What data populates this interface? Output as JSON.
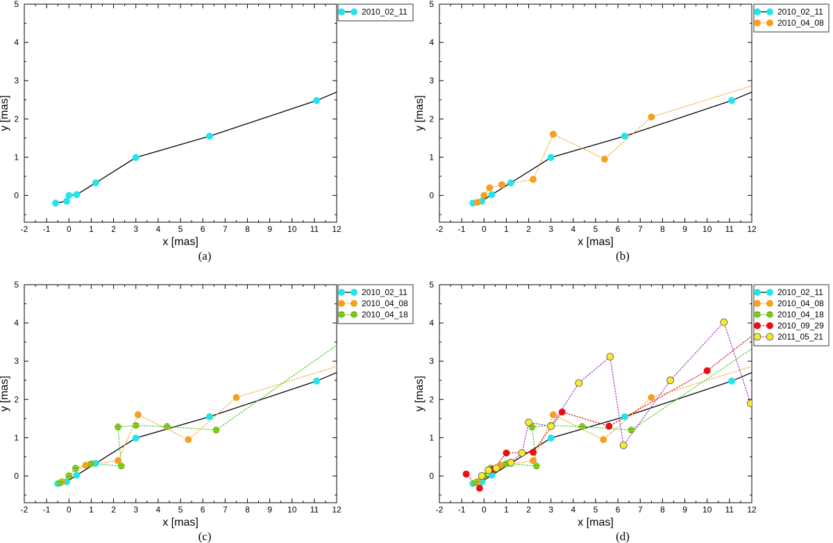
{
  "figure": {
    "caption_labels": [
      "(a)",
      "(b)",
      "(c)",
      "(d)"
    ]
  },
  "series_styles": {
    "2010_02_11": {
      "color": "#1fe6ec",
      "line": "#000000",
      "dash": "solid",
      "stripes": false,
      "marker_edge": ""
    },
    "2010_04_08": {
      "color": "#f5a01e",
      "line": "#f5a01e",
      "dash": "dotted",
      "stripes": false,
      "marker_edge": ""
    },
    "2010_04_18": {
      "color": "#7be01c",
      "line": "#3fcc1c",
      "dash": "dotted",
      "stripes": true,
      "marker_edge": ""
    },
    "2010_09_29": {
      "color": "#e81010",
      "line": "#d01010",
      "dash": "dotted",
      "stripes": false,
      "marker_edge": ""
    },
    "2011_05_21": {
      "color": "#f6ea2c",
      "line": "#9a2fc6",
      "dash": "dotted",
      "stripes": false,
      "marker_edge": "#555555"
    }
  },
  "chart_data": [
    {
      "type": "line",
      "panel": "(a)",
      "xlabel": "x [mas]",
      "ylabel": "y [mas]",
      "xlim": [
        -2,
        12
      ],
      "ylim": [
        -0.7,
        5
      ],
      "xticks": [
        -2,
        -1,
        0,
        1,
        2,
        3,
        4,
        5,
        6,
        7,
        8,
        9,
        10,
        11,
        12
      ],
      "yticks": [
        0,
        1,
        2,
        3,
        4,
        5
      ],
      "legend": "top-right",
      "series": [
        {
          "name": "2010_02_11",
          "x": [
            -0.6,
            -0.1,
            0.0,
            0.35,
            1.2,
            3.0,
            6.3,
            11.1,
            12.2
          ],
          "y": [
            -0.2,
            -0.15,
            0.0,
            0.02,
            0.33,
            0.99,
            1.55,
            2.48,
            2.75
          ],
          "markers": [
            true,
            true,
            true,
            true,
            true,
            true,
            true,
            true,
            false
          ]
        }
      ]
    },
    {
      "type": "line",
      "panel": "(b)",
      "xlabel": "x [mas]",
      "ylabel": "y [mas]",
      "xlim": [
        -2,
        12
      ],
      "ylim": [
        -0.7,
        5
      ],
      "xticks": [
        -2,
        -1,
        0,
        1,
        2,
        3,
        4,
        5,
        6,
        7,
        8,
        9,
        10,
        11,
        12
      ],
      "yticks": [
        0,
        1,
        2,
        3,
        4,
        5
      ],
      "legend": "top-right",
      "series": [
        {
          "name": "2010_02_11",
          "x": [
            -0.5,
            -0.1,
            0.35,
            1.2,
            3.0,
            6.3,
            11.1,
            12.2
          ],
          "y": [
            -0.2,
            -0.15,
            0.02,
            0.33,
            0.99,
            1.55,
            2.48,
            2.75
          ],
          "markers": [
            true,
            true,
            true,
            true,
            true,
            true,
            true,
            false
          ]
        },
        {
          "name": "2010_04_08",
          "x": [
            -0.3,
            0.0,
            0.25,
            0.8,
            2.2,
            3.1,
            5.4,
            7.5,
            12.2
          ],
          "y": [
            -0.18,
            0.0,
            0.2,
            0.28,
            0.42,
            1.6,
            0.95,
            2.05,
            2.9
          ],
          "markers": [
            true,
            true,
            true,
            true,
            true,
            true,
            true,
            true,
            false
          ]
        }
      ]
    },
    {
      "type": "line",
      "panel": "(c)",
      "xlabel": "x [mas]",
      "ylabel": "y [mas]",
      "xlim": [
        -2,
        12
      ],
      "ylim": [
        -0.7,
        5
      ],
      "xticks": [
        -2,
        -1,
        0,
        1,
        2,
        3,
        4,
        5,
        6,
        7,
        8,
        9,
        10,
        11,
        12
      ],
      "yticks": [
        0,
        1,
        2,
        3,
        4,
        5
      ],
      "legend": "top-right",
      "series": [
        {
          "name": "2010_02_11",
          "x": [
            -0.5,
            -0.1,
            0.35,
            1.2,
            3.0,
            6.3,
            11.1,
            12.2
          ],
          "y": [
            -0.2,
            -0.15,
            0.02,
            0.33,
            0.99,
            1.55,
            2.48,
            2.75
          ],
          "markers": [
            true,
            true,
            true,
            true,
            true,
            true,
            true,
            false
          ]
        },
        {
          "name": "2010_04_08",
          "x": [
            -0.3,
            0.75,
            2.2,
            3.1,
            5.35,
            7.5,
            12.2
          ],
          "y": [
            -0.15,
            0.28,
            0.4,
            1.6,
            0.95,
            2.05,
            2.9
          ],
          "markers": [
            true,
            true,
            true,
            true,
            true,
            true,
            false
          ]
        },
        {
          "name": "2010_04_18",
          "x": [
            -0.4,
            0.0,
            0.3,
            1.0,
            2.35,
            2.2,
            3.0,
            4.4,
            6.6,
            12.2
          ],
          "y": [
            -0.18,
            0.0,
            0.2,
            0.32,
            0.26,
            1.28,
            1.32,
            1.29,
            1.2,
            3.5
          ],
          "markers": [
            true,
            true,
            true,
            true,
            true,
            true,
            true,
            true,
            true,
            false
          ]
        }
      ]
    },
    {
      "type": "line",
      "panel": "(d)",
      "xlabel": "x [mas]",
      "ylabel": "y [mas]",
      "xlim": [
        -2,
        12
      ],
      "ylim": [
        -0.7,
        5
      ],
      "xticks": [
        -2,
        -1,
        0,
        1,
        2,
        3,
        4,
        5,
        6,
        7,
        8,
        9,
        10,
        11,
        12
      ],
      "yticks": [
        0,
        1,
        2,
        3,
        4,
        5
      ],
      "legend": "top-right",
      "series": [
        {
          "name": "2010_02_11",
          "x": [
            -0.5,
            -0.1,
            0.35,
            1.2,
            3.0,
            6.3,
            11.1,
            12.2
          ],
          "y": [
            -0.2,
            -0.15,
            0.02,
            0.33,
            0.99,
            1.55,
            2.48,
            2.75
          ],
          "markers": [
            true,
            true,
            true,
            true,
            true,
            true,
            true,
            false
          ]
        },
        {
          "name": "2010_04_08",
          "x": [
            -0.3,
            0.75,
            2.2,
            3.1,
            5.35,
            7.5,
            12.2
          ],
          "y": [
            -0.15,
            0.28,
            0.4,
            1.6,
            0.95,
            2.05,
            2.9
          ],
          "markers": [
            true,
            true,
            true,
            true,
            true,
            true,
            false
          ]
        },
        {
          "name": "2010_04_18",
          "x": [
            -0.4,
            0.0,
            0.3,
            1.0,
            2.35,
            2.15,
            3.0,
            4.4,
            6.6,
            12.2
          ],
          "y": [
            -0.18,
            0.0,
            0.2,
            0.32,
            0.26,
            1.28,
            1.32,
            1.29,
            1.2,
            3.4
          ],
          "markers": [
            true,
            true,
            true,
            true,
            true,
            true,
            true,
            true,
            true,
            false
          ]
        },
        {
          "name": "2010_09_29",
          "x": [
            -0.8,
            -0.2,
            0.4,
            1.0,
            2.2,
            3.5,
            5.6,
            10.0,
            12.2
          ],
          "y": [
            0.05,
            -0.32,
            0.17,
            0.6,
            0.62,
            1.67,
            1.3,
            2.75,
            3.75
          ],
          "markers": [
            true,
            true,
            true,
            true,
            true,
            true,
            true,
            true,
            false
          ]
        },
        {
          "name": "2011_05_21",
          "x": [
            -0.1,
            0.2,
            0.55,
            1.2,
            1.7,
            2.0,
            3.0,
            4.25,
            5.65,
            6.25,
            8.35,
            10.75,
            11.95
          ],
          "y": [
            0.0,
            0.15,
            0.2,
            0.35,
            0.6,
            1.4,
            1.3,
            2.43,
            3.12,
            0.8,
            2.5,
            4.02,
            1.9
          ],
          "markers": [
            true,
            true,
            true,
            true,
            true,
            true,
            true,
            true,
            true,
            true,
            true,
            true,
            true
          ]
        }
      ]
    }
  ]
}
